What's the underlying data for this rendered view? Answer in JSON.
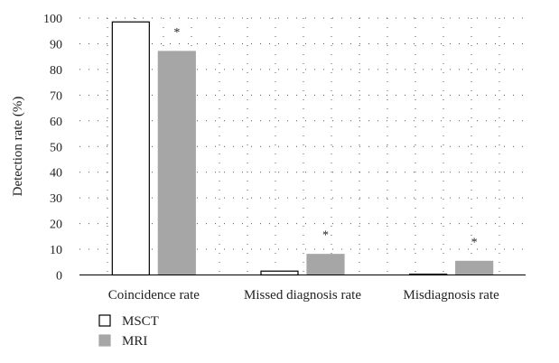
{
  "chart_data": {
    "type": "bar",
    "categories": [
      "Coincidence rate",
      "Missed diagnosis rate",
      "Misdiagnosis rate"
    ],
    "series": [
      {
        "name": "MSCT",
        "values": [
          98.5,
          1.5,
          0.3
        ],
        "color": "#ffffff",
        "stroke": "#000000"
      },
      {
        "name": "MRI",
        "values": [
          87,
          8,
          5.3
        ],
        "color": "#a6a6a6",
        "stroke": "#a6a6a6"
      }
    ],
    "annotations": [
      {
        "category": "Coincidence rate",
        "series": "MRI",
        "text": "*"
      },
      {
        "category": "Missed diagnosis rate",
        "series": "MRI",
        "text": "*"
      },
      {
        "category": "Misdiagnosis rate",
        "series": "MRI",
        "text": "*"
      }
    ],
    "ylabel": "Detection rate (%)",
    "xlabel": "",
    "ylim": [
      0,
      100
    ],
    "yticks": [
      0,
      10,
      20,
      30,
      40,
      50,
      60,
      70,
      80,
      90,
      100
    ],
    "grid": "dotted",
    "legend_position": "bottom-left"
  }
}
